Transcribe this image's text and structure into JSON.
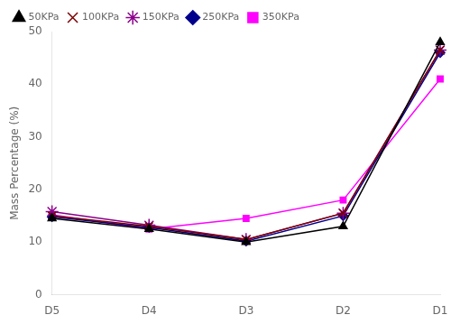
{
  "chart_data": {
    "type": "line",
    "categories": [
      "D5",
      "D4",
      "D3",
      "D2",
      "D1"
    ],
    "series": [
      {
        "name": "50KPa",
        "color": "#000000",
        "marker": "triangle",
        "values": [
          14.5,
          12.5,
          10.0,
          13.0,
          48.0
        ]
      },
      {
        "name": "100KPa",
        "color": "#7B0000",
        "marker": "x",
        "values": [
          15.0,
          13.0,
          10.5,
          15.5,
          46.5
        ]
      },
      {
        "name": "150KPa",
        "color": "#8B008B",
        "marker": "star",
        "values": [
          15.8,
          13.2,
          10.5,
          15.5,
          46.5
        ]
      },
      {
        "name": "250KPa",
        "color": "#00008B",
        "marker": "diamond",
        "values": [
          14.8,
          12.8,
          10.2,
          15.0,
          46.0
        ]
      },
      {
        "name": "350KPa",
        "color": "#FF00FF",
        "marker": "square",
        "values": [
          15.2,
          12.5,
          14.5,
          18.0,
          41.0
        ]
      }
    ],
    "ylabel": "Mass Percentage (%)",
    "ylim": [
      0,
      50
    ],
    "yticks": [
      0,
      10,
      20,
      30,
      40,
      50
    ],
    "grid": false,
    "legend": "upper left"
  }
}
